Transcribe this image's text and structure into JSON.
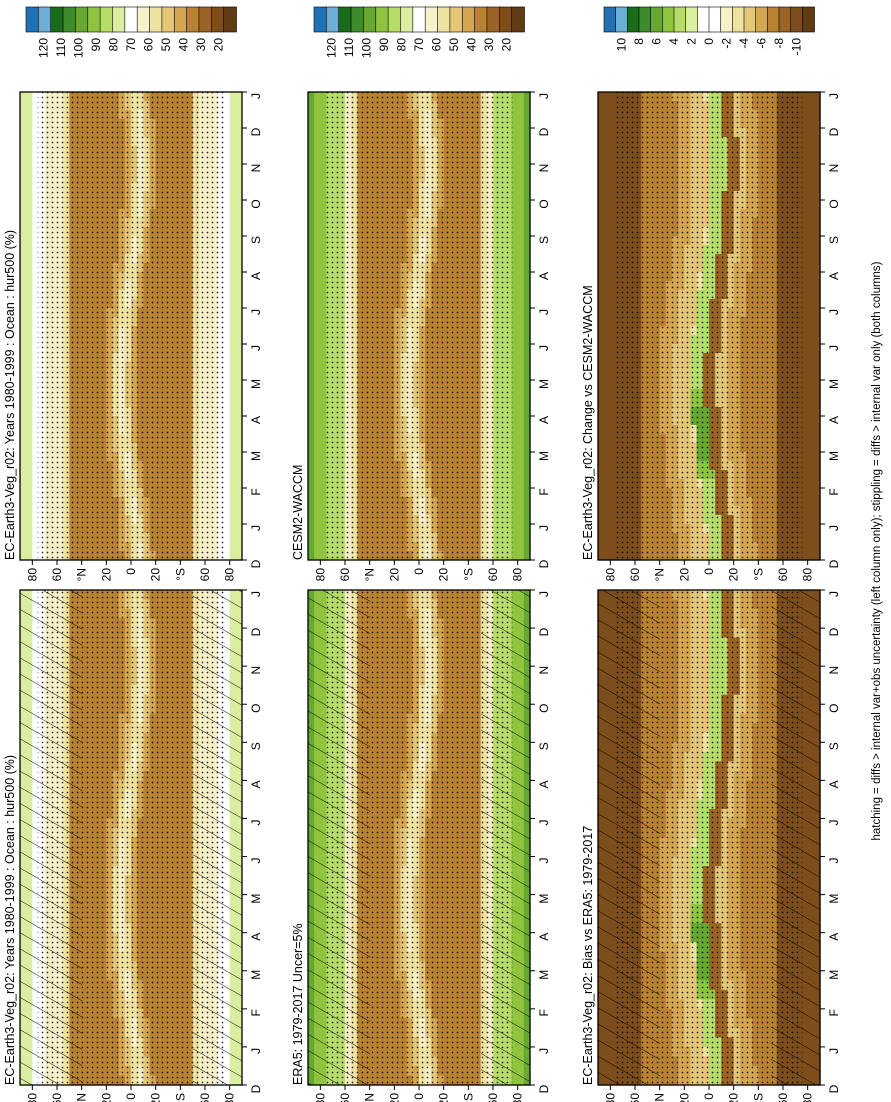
{
  "caption": "hatching = diffs > internal var+obs uncertainty (left column only); stippling = diffs > internal var only (both columns)",
  "chart_data": [
    {
      "type": "heatmap",
      "title": "EC-Earth3-Veg_r02: Years 1980-1999 : Ocean : hur500 (%)",
      "x_ticks": [
        "D",
        "J",
        "F",
        "M",
        "A",
        "M",
        "J",
        "J",
        "A",
        "S",
        "O",
        "N",
        "D",
        "J"
      ],
      "y_ticks": [
        "80",
        "60",
        "°N",
        "20",
        "0",
        "20",
        "°S",
        "60",
        "80"
      ],
      "y_range": [
        -90,
        90
      ],
      "colorbar": {
        "labels": [
          "120",
          "110",
          "100",
          "90",
          "80",
          "70",
          "60",
          "50",
          "40",
          "30",
          "20"
        ],
        "range": [
          10,
          130
        ]
      },
      "overlay": "hatch+stipple",
      "field": "mean"
    },
    {
      "type": "heatmap",
      "title": "EC-Earth3-Veg_r02: Years 1980-1999 : Ocean : hur500 (%)",
      "x_ticks": [
        "D",
        "J",
        "F",
        "M",
        "A",
        "M",
        "J",
        "J",
        "A",
        "S",
        "O",
        "N",
        "D",
        "J"
      ],
      "y_ticks": [
        "80",
        "60",
        "°N",
        "20",
        "0",
        "20",
        "°S",
        "60",
        "80"
      ],
      "y_range": [
        -90,
        90
      ],
      "colorbar": {
        "labels": [
          "120",
          "110",
          "100",
          "90",
          "80",
          "70",
          "60",
          "50",
          "40",
          "30",
          "20"
        ],
        "range": [
          10,
          130
        ]
      },
      "overlay": "stipple",
      "field": "mean"
    },
    {
      "type": "heatmap",
      "title": "ERA5: 1979-2017 Uncer=5%",
      "x_ticks": [
        "D",
        "J",
        "F",
        "M",
        "A",
        "M",
        "J",
        "J",
        "A",
        "S",
        "O",
        "N",
        "D",
        "J"
      ],
      "y_ticks": [
        "80",
        "60",
        "°N",
        "20",
        "0",
        "20",
        "°S",
        "60",
        "80"
      ],
      "y_range": [
        -90,
        90
      ],
      "colorbar": {
        "labels": [
          "120",
          "110",
          "100",
          "90",
          "80",
          "70",
          "60",
          "50",
          "40",
          "30",
          "20"
        ],
        "range": [
          10,
          130
        ]
      },
      "overlay": "hatch+stipple",
      "field": "obs"
    },
    {
      "type": "heatmap",
      "title": "CESM2-WACCM",
      "x_ticks": [
        "D",
        "J",
        "F",
        "M",
        "A",
        "M",
        "J",
        "J",
        "A",
        "S",
        "O",
        "N",
        "D",
        "J"
      ],
      "y_ticks": [
        "80",
        "60",
        "°N",
        "20",
        "0",
        "20",
        "°S",
        "60",
        "80"
      ],
      "y_range": [
        -90,
        90
      ],
      "colorbar": {
        "labels": [
          "120",
          "110",
          "100",
          "90",
          "80",
          "70",
          "60",
          "50",
          "40",
          "30",
          "20"
        ],
        "range": [
          10,
          130
        ]
      },
      "overlay": "stipple",
      "field": "cesm"
    },
    {
      "type": "heatmap",
      "title": "EC-Earth3-Veg_r02: Bias vs ERA5: 1979-2017",
      "x_ticks": [
        "D",
        "J",
        "F",
        "M",
        "A",
        "M",
        "J",
        "J",
        "A",
        "S",
        "O",
        "N",
        "D",
        "J"
      ],
      "y_ticks": [
        "80",
        "60",
        "°N",
        "20",
        "0",
        "20",
        "°S",
        "60",
        "80"
      ],
      "y_range": [
        -90,
        90
      ],
      "colorbar": {
        "labels": [
          "10",
          "8",
          "6",
          "4",
          "2",
          "0",
          "-2",
          "-4",
          "-6",
          "-8",
          "-10"
        ],
        "range": [
          -12,
          12
        ]
      },
      "overlay": "hatch+stipple",
      "field": "diff"
    },
    {
      "type": "heatmap",
      "title": "EC-Earth3-Veg_r02: Change vs CESM2-WACCM",
      "x_ticks": [
        "D",
        "J",
        "F",
        "M",
        "A",
        "M",
        "J",
        "J",
        "A",
        "S",
        "O",
        "N",
        "D",
        "J"
      ],
      "y_ticks": [
        "80",
        "60",
        "°N",
        "20",
        "0",
        "20",
        "°S",
        "60",
        "80"
      ],
      "y_range": [
        -90,
        90
      ],
      "colorbar": {
        "labels": [
          "10",
          "8",
          "6",
          "4",
          "2",
          "0",
          "-2",
          "-4",
          "-6",
          "-8",
          "-10"
        ],
        "range": [
          -12,
          12
        ]
      },
      "overlay": "stipple",
      "field": "diff"
    }
  ],
  "colors": {
    "abs_scale": [
      "#2171b5",
      "#6baed6",
      "#1b6b1b",
      "#3d8b2a",
      "#66a832",
      "#8fc43f",
      "#b6dd6a",
      "#d9ee9e",
      "#ffffff",
      "#f7f0c8",
      "#efe2a0",
      "#e3c678",
      "#d4a650",
      "#b98232",
      "#9a6424",
      "#7d4e1c",
      "#603b14"
    ],
    "diff_scale": [
      "#2171b5",
      "#6baed6",
      "#1b6b1b",
      "#3d8b2a",
      "#66a832",
      "#8fc43f",
      "#b6dd6a",
      "#d9ee9e",
      "#ffffff",
      "#ffffff",
      "#f7f0c8",
      "#efe2a0",
      "#e3c678",
      "#d4a650",
      "#b98232",
      "#9a6424",
      "#7d4e1c",
      "#603b14"
    ]
  }
}
